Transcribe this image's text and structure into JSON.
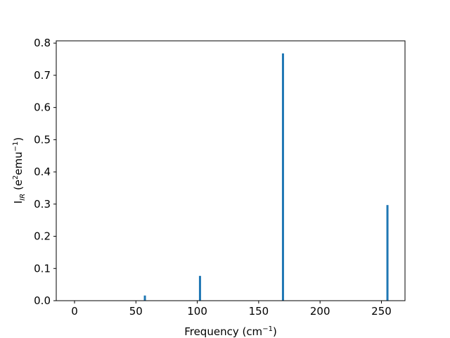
{
  "chart_data": {
    "type": "bar",
    "x": [
      57.3,
      102.2,
      169.8,
      254.9
    ],
    "values": [
      0.016,
      0.077,
      0.768,
      0.297
    ],
    "color": "#1f77b4",
    "xlabel": [
      "Frequency (cm",
      "−1",
      ")"
    ],
    "ylabel": [
      "I",
      "IR",
      " (e",
      "2",
      "emu",
      "−1",
      ")"
    ],
    "xlim": [
      -14.9,
      269.2
    ],
    "xticks": [
      0,
      50,
      100,
      150,
      200,
      250
    ],
    "ylim": [
      0,
      0.807
    ],
    "yticks": [
      {
        "value": 0,
        "label": "0.0"
      },
      0.1,
      0.2,
      0.3,
      0.4,
      0.5,
      0.6,
      0.7,
      0.8
    ]
  }
}
